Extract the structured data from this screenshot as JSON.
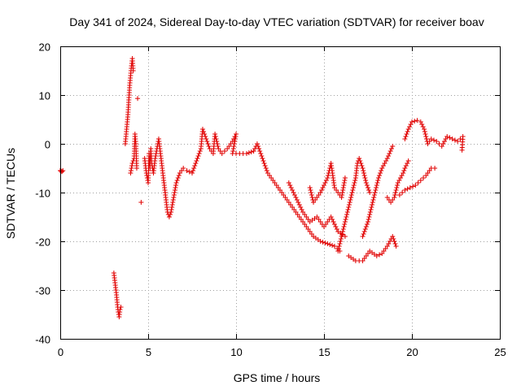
{
  "chart_data": {
    "type": "scatter",
    "title": "Day 341 of 2024, Sidereal Day-to-day VTEC variation (SDTVAR) for receiver boav",
    "xlabel": "GPS time / hours",
    "ylabel": "SDTVAR / TECUs",
    "xlim": [
      0,
      25
    ],
    "ylim": [
      -40,
      20
    ],
    "xticks": [
      0,
      5,
      10,
      15,
      20,
      25
    ],
    "yticks": [
      -40,
      -30,
      -20,
      -10,
      0,
      10,
      20
    ],
    "grid": true,
    "marker": "+",
    "series_color": "#e00000",
    "series": [
      {
        "name": "boav",
        "points": [
          [
            0.0,
            -5.5
          ],
          [
            0.05,
            -5.6
          ],
          [
            0.1,
            -5.7
          ],
          [
            0.15,
            -5.5
          ],
          [
            3.05,
            -26.5
          ],
          [
            3.1,
            -28
          ],
          [
            3.15,
            -29.5
          ],
          [
            3.2,
            -31
          ],
          [
            3.25,
            -33
          ],
          [
            3.3,
            -34.5
          ],
          [
            3.35,
            -35.5
          ],
          [
            3.4,
            -34
          ],
          [
            3.45,
            -33.5
          ],
          [
            3.7,
            0
          ],
          [
            3.75,
            2
          ],
          [
            3.8,
            4
          ],
          [
            3.85,
            6
          ],
          [
            3.9,
            9
          ],
          [
            3.95,
            12
          ],
          [
            4.0,
            14
          ],
          [
            4.05,
            16
          ],
          [
            4.1,
            17.5
          ],
          [
            4.15,
            15
          ],
          [
            4.0,
            -6
          ],
          [
            4.1,
            -4
          ],
          [
            4.2,
            -3
          ],
          [
            4.25,
            2
          ],
          [
            4.3,
            0
          ],
          [
            4.35,
            -5
          ],
          [
            4.4,
            9.3
          ],
          [
            4.6,
            -12
          ],
          [
            4.8,
            -3
          ],
          [
            4.9,
            -6
          ],
          [
            5.0,
            -8
          ],
          [
            5.05,
            -2
          ],
          [
            5.1,
            -5
          ],
          [
            5.15,
            -1
          ],
          [
            5.2,
            -4
          ],
          [
            5.3,
            -6
          ],
          [
            5.4,
            -3
          ],
          [
            5.5,
            -1
          ],
          [
            5.6,
            1
          ],
          [
            5.7,
            -2
          ],
          [
            5.8,
            -5
          ],
          [
            5.9,
            -8
          ],
          [
            6.0,
            -11
          ],
          [
            6.1,
            -14
          ],
          [
            6.2,
            -15
          ],
          [
            6.3,
            -14
          ],
          [
            6.4,
            -12
          ],
          [
            6.5,
            -10
          ],
          [
            6.6,
            -8
          ],
          [
            6.8,
            -6
          ],
          [
            7.0,
            -5
          ],
          [
            7.2,
            -5.5
          ],
          [
            7.5,
            -6
          ],
          [
            7.8,
            -3
          ],
          [
            8.0,
            -1
          ],
          [
            8.1,
            3
          ],
          [
            8.3,
            1
          ],
          [
            8.5,
            -1
          ],
          [
            8.7,
            -2
          ],
          [
            8.8,
            2
          ],
          [
            9.0,
            -1
          ],
          [
            9.2,
            -2
          ],
          [
            9.5,
            -1
          ],
          [
            9.8,
            0.5
          ],
          [
            10.0,
            2
          ],
          [
            9.8,
            -2
          ],
          [
            10.2,
            -2
          ],
          [
            10.6,
            -2
          ],
          [
            11.0,
            -1.5
          ],
          [
            11.2,
            0
          ],
          [
            11.4,
            -2
          ],
          [
            11.6,
            -4
          ],
          [
            11.8,
            -6
          ],
          [
            12.0,
            -7
          ],
          [
            12.3,
            -8.5
          ],
          [
            12.6,
            -10
          ],
          [
            12.9,
            -11.5
          ],
          [
            13.2,
            -13
          ],
          [
            13.5,
            -14.5
          ],
          [
            13.8,
            -16
          ],
          [
            14.1,
            -17.5
          ],
          [
            14.4,
            -19
          ],
          [
            14.8,
            -20
          ],
          [
            15.2,
            -20.5
          ],
          [
            15.6,
            -21
          ],
          [
            15.9,
            -22
          ],
          [
            13.0,
            -8
          ],
          [
            13.4,
            -11
          ],
          [
            13.8,
            -14
          ],
          [
            14.2,
            -16
          ],
          [
            14.6,
            -15
          ],
          [
            15.0,
            -17
          ],
          [
            15.4,
            -15
          ],
          [
            15.8,
            -18
          ],
          [
            16.2,
            -19
          ],
          [
            14.2,
            -9
          ],
          [
            14.4,
            -12
          ],
          [
            14.8,
            -10
          ],
          [
            15.2,
            -7
          ],
          [
            15.4,
            -4
          ],
          [
            15.6,
            -9
          ],
          [
            16.0,
            -11
          ],
          [
            16.2,
            -7
          ],
          [
            15.8,
            -22
          ],
          [
            16.0,
            -19
          ],
          [
            16.2,
            -16
          ],
          [
            16.4,
            -13
          ],
          [
            16.6,
            -10
          ],
          [
            16.8,
            -7
          ],
          [
            16.9,
            -4
          ],
          [
            17.0,
            -3
          ],
          [
            17.2,
            -5
          ],
          [
            17.4,
            -8
          ],
          [
            17.6,
            -10
          ],
          [
            16.4,
            -23
          ],
          [
            16.8,
            -24
          ],
          [
            17.2,
            -24
          ],
          [
            17.6,
            -22
          ],
          [
            18.0,
            -23
          ],
          [
            18.3,
            -22.5
          ],
          [
            18.6,
            -21
          ],
          [
            18.9,
            -19
          ],
          [
            19.1,
            -21
          ],
          [
            17.2,
            -19
          ],
          [
            17.5,
            -16
          ],
          [
            17.7,
            -13
          ],
          [
            17.9,
            -10
          ],
          [
            18.1,
            -7
          ],
          [
            18.3,
            -5
          ],
          [
            18.6,
            -3
          ],
          [
            18.9,
            -0.5
          ],
          [
            18.6,
            -11
          ],
          [
            18.8,
            -12
          ],
          [
            19.0,
            -11
          ],
          [
            19.2,
            -8
          ],
          [
            19.5,
            -6
          ],
          [
            19.6,
            -5
          ],
          [
            19.8,
            -3.5
          ],
          [
            19.3,
            -10.5
          ],
          [
            19.6,
            -9.5
          ],
          [
            19.9,
            -9
          ],
          [
            20.2,
            -8.5
          ],
          [
            20.5,
            -7.5
          ],
          [
            20.8,
            -6.5
          ],
          [
            21.1,
            -5
          ],
          [
            21.3,
            -5
          ],
          [
            19.6,
            1
          ],
          [
            19.8,
            3
          ],
          [
            20.0,
            4.5
          ],
          [
            20.3,
            4.8
          ],
          [
            20.5,
            4.5
          ],
          [
            20.7,
            3
          ],
          [
            20.9,
            0
          ],
          [
            21.1,
            1
          ],
          [
            21.4,
            0.5
          ],
          [
            21.7,
            -0.5
          ],
          [
            22.0,
            1.5
          ],
          [
            22.3,
            1
          ],
          [
            22.6,
            0.5
          ],
          [
            22.9,
            1.5
          ],
          [
            22.85,
            -1.3
          ]
        ]
      }
    ]
  }
}
